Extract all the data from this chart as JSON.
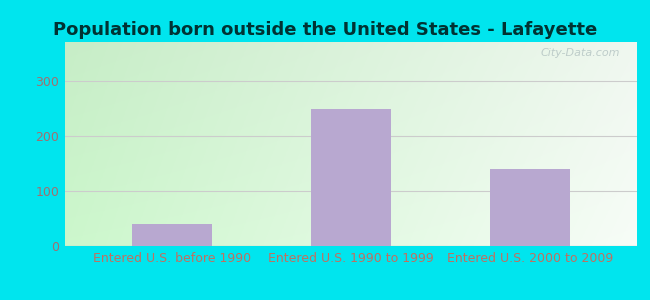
{
  "title": "Population born outside the United States - Lafayette",
  "categories": [
    "Entered U.S. before 1990",
    "Entered U.S. 1990 to 1999",
    "Entered U.S. 2000 to 2009"
  ],
  "values": [
    40,
    248,
    140
  ],
  "bar_color": "#b8a8d0",
  "bar_width": 0.45,
  "ylim": [
    0,
    370
  ],
  "yticks": [
    0,
    100,
    200,
    300
  ],
  "tick_color": "#a07070",
  "label_color": "#c07060",
  "title_color": "#003333",
  "outer_bg": "#00e5ee",
  "watermark": "City-Data.com",
  "title_fontsize": 13,
  "tick_fontsize": 9,
  "label_fontsize": 9,
  "grid_color": "#cccccc",
  "bg_left": "#c8e8c0",
  "bg_right": "#f0f8f8"
}
